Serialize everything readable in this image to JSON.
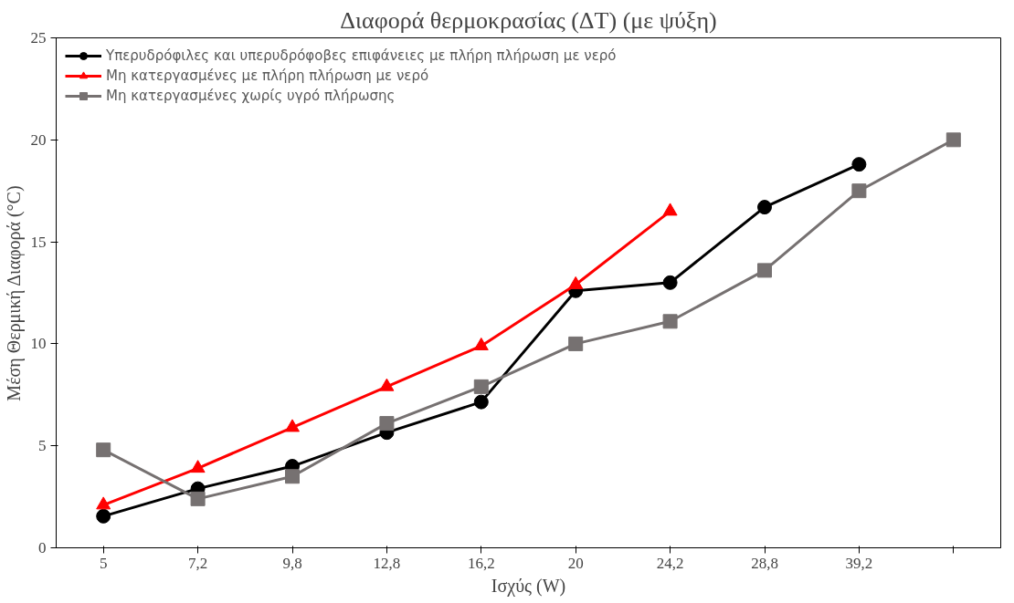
{
  "chart_data": {
    "type": "line",
    "title": "Διαφορά θερμοκρασίας (ΔT) (με ψύξη)",
    "xlabel": "Ισχύς (W)",
    "ylabel": "Μέση Θερμική Διαφορά (°C)",
    "categories": [
      "5",
      "7,2",
      "9,8",
      "12,8",
      "16,2",
      "20",
      "24,2",
      "28,8",
      "39,2",
      null
    ],
    "series": [
      {
        "name": "Υπερυδρόφιλες και υπερυδρόφοβες επιφάνειες με πλήρη πλήρωση με νερό",
        "color": "#000000",
        "marker": "circle",
        "values": [
          1.55,
          2.9,
          4.0,
          5.65,
          7.15,
          12.6,
          13.0,
          16.7,
          18.8,
          null
        ]
      },
      {
        "name": "Μη κατεργασμένες με πλήρη πλήρωση με νερό",
        "color": "#ff0000",
        "marker": "triangle",
        "values": [
          2.1,
          3.9,
          5.9,
          7.9,
          9.9,
          12.9,
          16.5,
          null,
          null,
          null
        ]
      },
      {
        "name": "Μη κατεργασμένες χωρίς υγρό πλήρωσης",
        "color": "#767171",
        "marker": "square",
        "values": [
          4.8,
          2.4,
          3.5,
          6.1,
          7.9,
          10.0,
          11.1,
          13.6,
          17.5,
          20.0
        ]
      }
    ],
    "ylim": [
      0,
      25
    ],
    "yticks": [
      0,
      5,
      10,
      15,
      20,
      25
    ],
    "grid": false,
    "legend": "top left",
    "line_style": "solid"
  }
}
